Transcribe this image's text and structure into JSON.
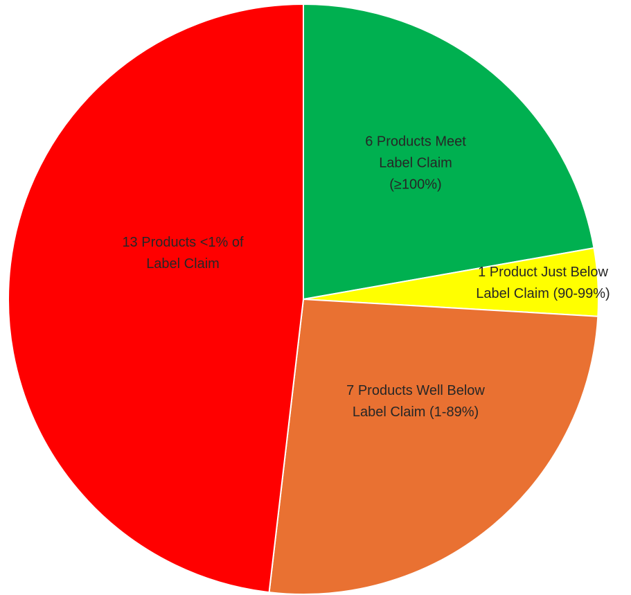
{
  "chart_data": {
    "type": "pie",
    "slices": [
      {
        "value": 6,
        "label_lines": [
          "6 Products Meet",
          "Label Claim",
          "(≥100%)"
        ],
        "color": "#00B050"
      },
      {
        "value": 1,
        "label_lines": [
          "1 Product Just Below",
          "Label Claim (90-99%)"
        ],
        "color": "#FFFF00"
      },
      {
        "value": 7,
        "label_lines": [
          "7 Products Well Below",
          "Label Claim (1-89%)"
        ],
        "color": "#E97132"
      },
      {
        "value": 13,
        "label_lines": [
          "13 Products <1% of",
          "Label Claim"
        ],
        "color": "#FF0000"
      }
    ],
    "legend": "none",
    "start_angle": "12 o'clock",
    "direction": "clockwise"
  }
}
